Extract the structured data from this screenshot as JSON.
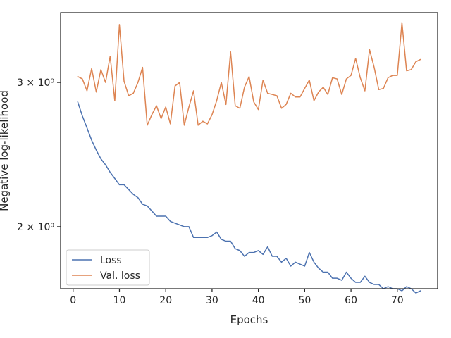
{
  "chart_data": {
    "type": "line",
    "title": "",
    "xlabel": "Epochs",
    "ylabel": "Negative log-likelihood",
    "yscale": "log",
    "xlim": [
      -2.7,
      78.7
    ],
    "ylim": [
      1.68,
      3.65
    ],
    "grid": false,
    "legend_position": "lower-left",
    "x_ticks": [
      0,
      10,
      20,
      30,
      40,
      50,
      60,
      70
    ],
    "x_tick_labels": [
      "0",
      "10",
      "20",
      "30",
      "40",
      "50",
      "60",
      "70"
    ],
    "y_ticks": [
      2,
      3
    ],
    "y_tick_labels": [
      "2 × 10⁰",
      "3 × 10⁰"
    ],
    "x": [
      1,
      2,
      3,
      4,
      5,
      6,
      7,
      8,
      9,
      10,
      11,
      12,
      13,
      14,
      15,
      16,
      17,
      18,
      19,
      20,
      21,
      22,
      23,
      24,
      25,
      26,
      27,
      28,
      29,
      30,
      31,
      32,
      33,
      34,
      35,
      36,
      37,
      38,
      39,
      40,
      41,
      42,
      43,
      44,
      45,
      46,
      47,
      48,
      49,
      50,
      51,
      52,
      53,
      54,
      55,
      56,
      57,
      58,
      59,
      60,
      61,
      62,
      63,
      64,
      65,
      66,
      67,
      68,
      69,
      70,
      71,
      72,
      73,
      74,
      75
    ],
    "series": [
      {
        "name": "Loss",
        "color": "#4c72b0",
        "values": [
          2.84,
          2.73,
          2.64,
          2.55,
          2.48,
          2.42,
          2.38,
          2.33,
          2.29,
          2.25,
          2.25,
          2.22,
          2.19,
          2.17,
          2.13,
          2.12,
          2.09,
          2.06,
          2.06,
          2.06,
          2.03,
          2.02,
          2.01,
          2.0,
          2.0,
          1.94,
          1.94,
          1.94,
          1.94,
          1.95,
          1.97,
          1.93,
          1.92,
          1.92,
          1.88,
          1.87,
          1.84,
          1.86,
          1.86,
          1.87,
          1.85,
          1.89,
          1.84,
          1.84,
          1.81,
          1.83,
          1.79,
          1.81,
          1.8,
          1.79,
          1.86,
          1.81,
          1.78,
          1.76,
          1.76,
          1.73,
          1.73,
          1.72,
          1.76,
          1.73,
          1.71,
          1.71,
          1.74,
          1.71,
          1.7,
          1.7,
          1.68,
          1.69,
          1.68,
          1.68,
          1.67,
          1.69,
          1.68,
          1.66,
          1.67
        ]
      },
      {
        "name": "Val. loss",
        "color": "#dd8452",
        "values": [
          3.05,
          3.03,
          2.93,
          3.12,
          2.92,
          3.11,
          3.0,
          3.23,
          2.85,
          3.53,
          3.01,
          2.89,
          2.91,
          3.0,
          3.13,
          2.66,
          2.74,
          2.81,
          2.71,
          2.8,
          2.67,
          2.97,
          3.0,
          2.66,
          2.8,
          2.93,
          2.66,
          2.69,
          2.67,
          2.74,
          2.85,
          3.0,
          2.82,
          3.27,
          2.81,
          2.79,
          2.96,
          3.05,
          2.84,
          2.78,
          3.02,
          2.91,
          2.9,
          2.89,
          2.79,
          2.82,
          2.91,
          2.88,
          2.88,
          2.95,
          3.02,
          2.85,
          2.92,
          2.96,
          2.9,
          3.04,
          3.03,
          2.9,
          3.03,
          3.06,
          3.21,
          3.04,
          2.93,
          3.29,
          3.13,
          2.94,
          2.95,
          3.04,
          3.06,
          3.06,
          3.55,
          3.1,
          3.11,
          3.18,
          3.2
        ]
      }
    ]
  }
}
